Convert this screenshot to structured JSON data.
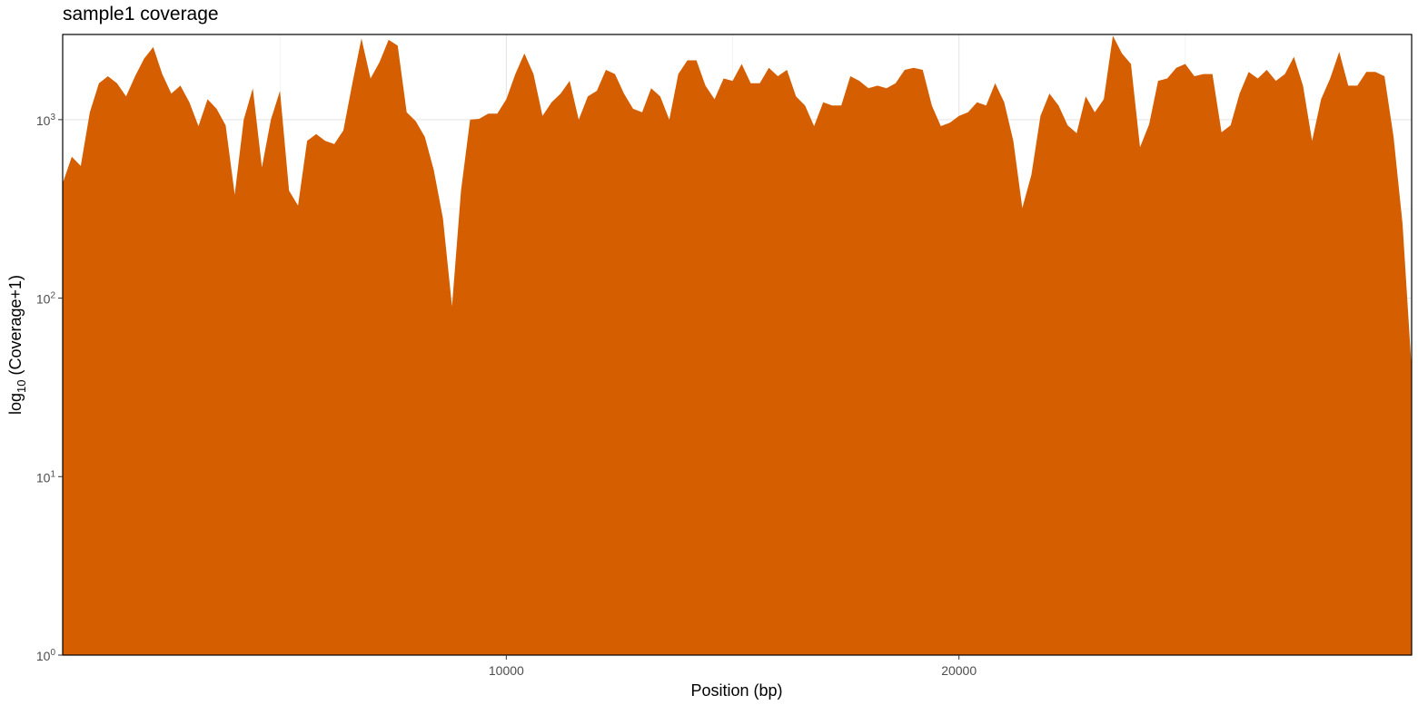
{
  "chart_data": {
    "type": "area",
    "title": "sample1 coverage",
    "xlabel": "Position (bp)",
    "ylabel_base": "log",
    "ylabel_sub": "10",
    "ylabel_rest": " (Coverage+1)",
    "y_scale": "log10",
    "xlim": [
      200,
      30000
    ],
    "ylim": [
      1,
      3000
    ],
    "x_ticks": [
      10000,
      20000
    ],
    "y_ticks": [
      {
        "value": 1,
        "base": "10",
        "exp": "0"
      },
      {
        "value": 10,
        "base": "10",
        "exp": "1"
      },
      {
        "value": 100,
        "base": "10",
        "exp": "2"
      },
      {
        "value": 1000,
        "base": "10",
        "exp": "3"
      }
    ],
    "grid": true,
    "fill_color": "#D55E00",
    "x": [
      200,
      400,
      600,
      800,
      1000,
      1200,
      1400,
      1600,
      1800,
      2000,
      2200,
      2400,
      2600,
      2800,
      3000,
      3200,
      3400,
      3600,
      3800,
      4000,
      4200,
      4400,
      4600,
      4800,
      5000,
      5200,
      5400,
      5600,
      5800,
      6000,
      6200,
      6400,
      6600,
      6800,
      7000,
      7200,
      7400,
      7600,
      7800,
      8000,
      8200,
      8400,
      8600,
      8800,
      9000,
      9200,
      9400,
      9600,
      9800,
      10000,
      10200,
      10400,
      10600,
      10800,
      11000,
      11200,
      11400,
      11600,
      11800,
      12000,
      12200,
      12400,
      12600,
      12800,
      13000,
      13200,
      13400,
      13600,
      13800,
      14000,
      14200,
      14400,
      14600,
      14800,
      15000,
      15200,
      15400,
      15600,
      15800,
      16000,
      16200,
      16400,
      16600,
      16800,
      17000,
      17200,
      17400,
      17600,
      17800,
      18000,
      18200,
      18400,
      18600,
      18800,
      19000,
      19200,
      19400,
      19600,
      19800,
      20000,
      20200,
      20400,
      20600,
      20800,
      21000,
      21200,
      21400,
      21600,
      21800,
      22000,
      22200,
      22400,
      22600,
      22800,
      23000,
      23200,
      23400,
      23600,
      23800,
      24000,
      24200,
      24400,
      24600,
      24800,
      25000,
      25200,
      25400,
      25600,
      25800,
      26000,
      26200,
      26400,
      26600,
      26800,
      27000,
      27200,
      27400,
      27600,
      27800,
      28000,
      28200,
      28400,
      28600,
      28800,
      29000,
      29200,
      29400,
      29600,
      29800,
      30000
    ],
    "values": [
      440,
      620,
      550,
      1100,
      1600,
      1750,
      1600,
      1350,
      1750,
      2200,
      2550,
      1800,
      1400,
      1550,
      1250,
      920,
      1300,
      1150,
      930,
      380,
      1000,
      1500,
      540,
      1000,
      1450,
      400,
      330,
      760,
      830,
      760,
      730,
      870,
      1600,
      2850,
      1700,
      2100,
      2800,
      2600,
      1100,
      980,
      800,
      520,
      280,
      90,
      400,
      1000,
      1010,
      1080,
      1080,
      1300,
      1800,
      2350,
      1800,
      1050,
      1250,
      1400,
      1650,
      1000,
      1350,
      1450,
      1900,
      1800,
      1400,
      1150,
      1100,
      1500,
      1350,
      1000,
      1800,
      2150,
      2150,
      1550,
      1300,
      1700,
      1650,
      2050,
      1600,
      1600,
      1950,
      1750,
      1900,
      1350,
      1200,
      920,
      1250,
      1200,
      1200,
      1750,
      1650,
      1500,
      1550,
      1500,
      1600,
      1900,
      1950,
      1900,
      1200,
      920,
      960,
      1050,
      1100,
      1250,
      1200,
      1600,
      1250,
      760,
      320,
      490,
      1050,
      1400,
      1200,
      930,
      840,
      1350,
      1100,
      1300,
      2950,
      2350,
      2050,
      700,
      940,
      1650,
      1700,
      1950,
      2050,
      1750,
      1800,
      1800,
      850,
      930,
      1400,
      1850,
      1700,
      1900,
      1650,
      1800,
      2250,
      1550,
      760,
      1300,
      1700,
      2400,
      1550,
      1550,
      1850,
      1850,
      1750,
      800,
      260,
      40
    ]
  }
}
